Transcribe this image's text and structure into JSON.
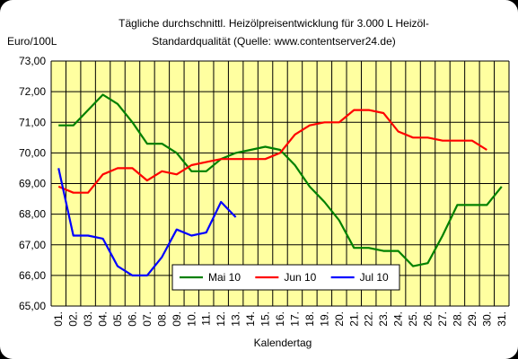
{
  "chart_data": {
    "type": "line",
    "title_line1": "Tägliche durchschnittl. Heizölpreisentwicklung für 3.000 L Heizöl-",
    "title_line2": "Standardqualität (Quelle: www.contentserver24.de)",
    "ylabel": "Euro/100L",
    "xlabel": "Kalendertag",
    "ylim": [
      65,
      73
    ],
    "yticks": [
      "65,00",
      "66,00",
      "67,00",
      "68,00",
      "69,00",
      "70,00",
      "71,00",
      "72,00",
      "73,00"
    ],
    "categories": [
      "01.",
      "02.",
      "03.",
      "04.",
      "05.",
      "06.",
      "07.",
      "08.",
      "09.",
      "10.",
      "11.",
      "12.",
      "13.",
      "14.",
      "15.",
      "16.",
      "17.",
      "18.",
      "19.",
      "20.",
      "21.",
      "22.",
      "23.",
      "24.",
      "25.",
      "26.",
      "27.",
      "28.",
      "29.",
      "30.",
      "31."
    ],
    "grid": true,
    "legend_position": "bottom-right",
    "colors": {
      "plot_bg": "#ffffa0",
      "grid": "#000000",
      "frame_bg": "#ffffff"
    },
    "series": [
      {
        "name": "Mai 10",
        "color": "#008000",
        "values": [
          70.9,
          70.9,
          71.4,
          71.9,
          71.6,
          71.0,
          70.3,
          70.3,
          70.0,
          69.4,
          69.4,
          69.8,
          70.0,
          70.1,
          70.2,
          70.1,
          69.6,
          68.9,
          68.4,
          67.8,
          66.9,
          66.9,
          66.8,
          66.8,
          66.3,
          66.4,
          67.3,
          68.3,
          68.3,
          68.3,
          68.9
        ]
      },
      {
        "name": "Jun 10",
        "color": "#ff0000",
        "values": [
          68.9,
          68.7,
          68.7,
          69.3,
          69.5,
          69.5,
          69.1,
          69.4,
          69.3,
          69.6,
          69.7,
          69.8,
          69.8,
          69.8,
          69.8,
          70.0,
          70.6,
          70.9,
          71.0,
          71.0,
          71.4,
          71.4,
          71.3,
          70.7,
          70.5,
          70.5,
          70.4,
          70.4,
          70.4,
          70.1,
          null
        ]
      },
      {
        "name": "Jul 10",
        "color": "#0000ff",
        "values": [
          69.5,
          67.3,
          67.3,
          67.2,
          66.3,
          66.0,
          66.0,
          66.6,
          67.5,
          67.3,
          67.4,
          68.4,
          67.9,
          null,
          null,
          null,
          null,
          null,
          null,
          null,
          null,
          null,
          null,
          null,
          null,
          null,
          null,
          null,
          null,
          null,
          null
        ]
      }
    ]
  }
}
